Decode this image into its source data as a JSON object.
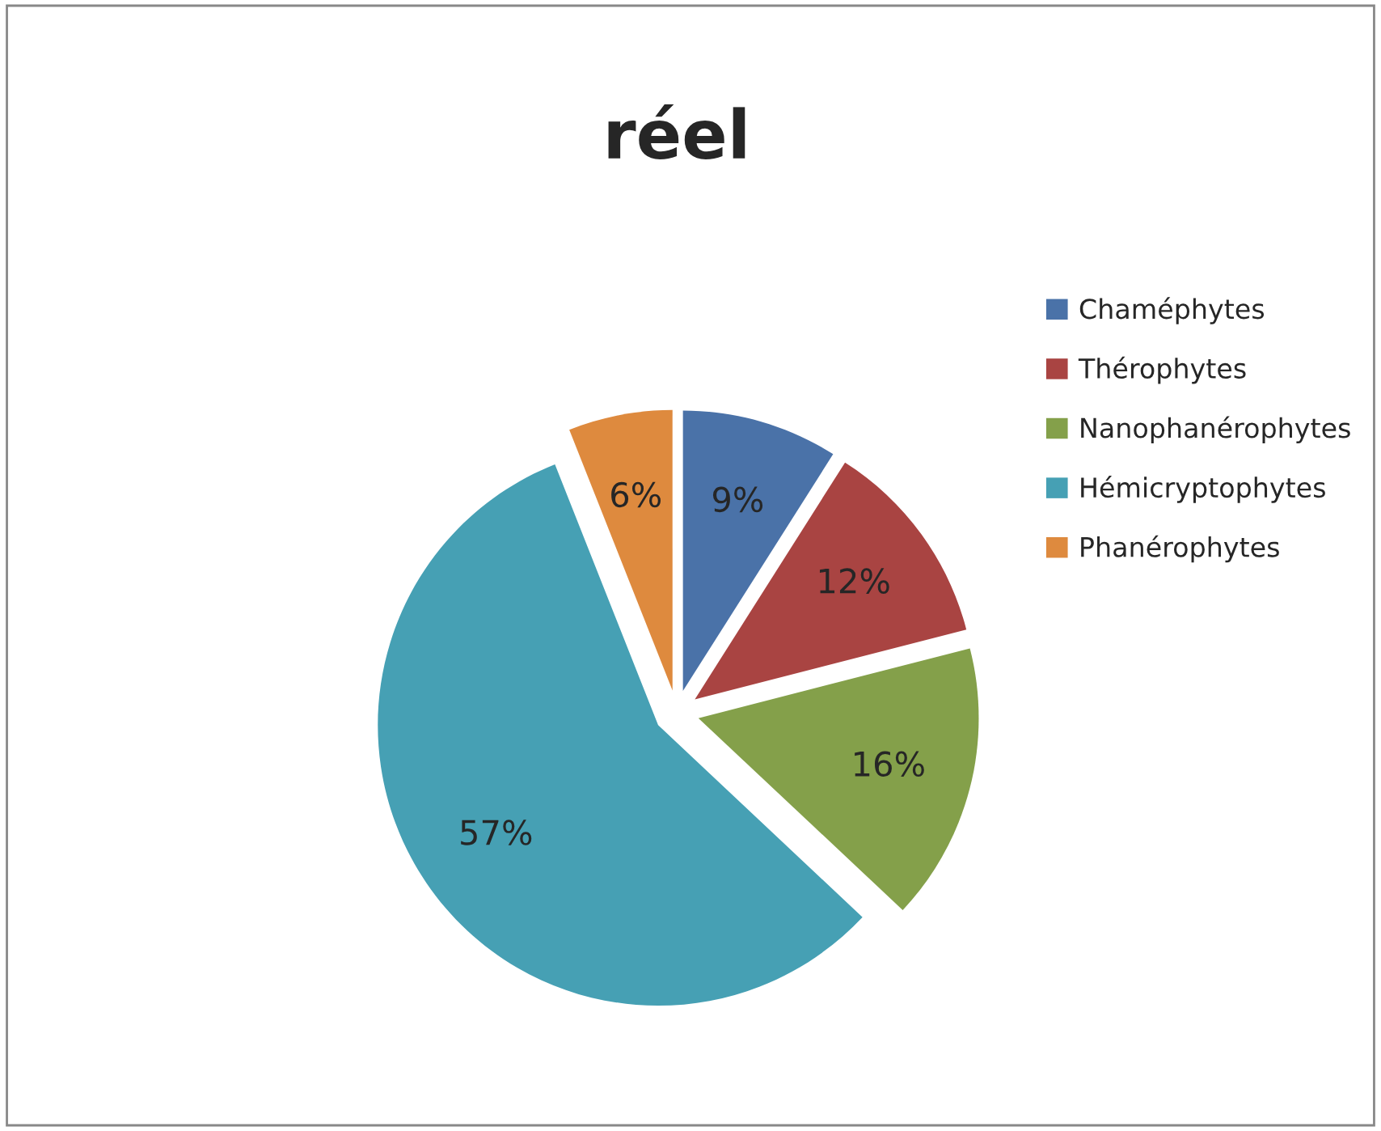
{
  "chart_data": {
    "type": "pie",
    "title": "réel",
    "categories": [
      "Chaméphytes",
      "Thérophytes",
      "Nanophanérophytes",
      "Hémicryptophytes",
      "Phanérophytes"
    ],
    "values": [
      9,
      12,
      16,
      57,
      6
    ],
    "colors": [
      "#4a72a8",
      "#a94442",
      "#84a04a",
      "#46a0b4",
      "#de8a3e"
    ],
    "value_labels": [
      "9%",
      "12%",
      "16%",
      "57%",
      "6%"
    ],
    "legend": "right"
  }
}
